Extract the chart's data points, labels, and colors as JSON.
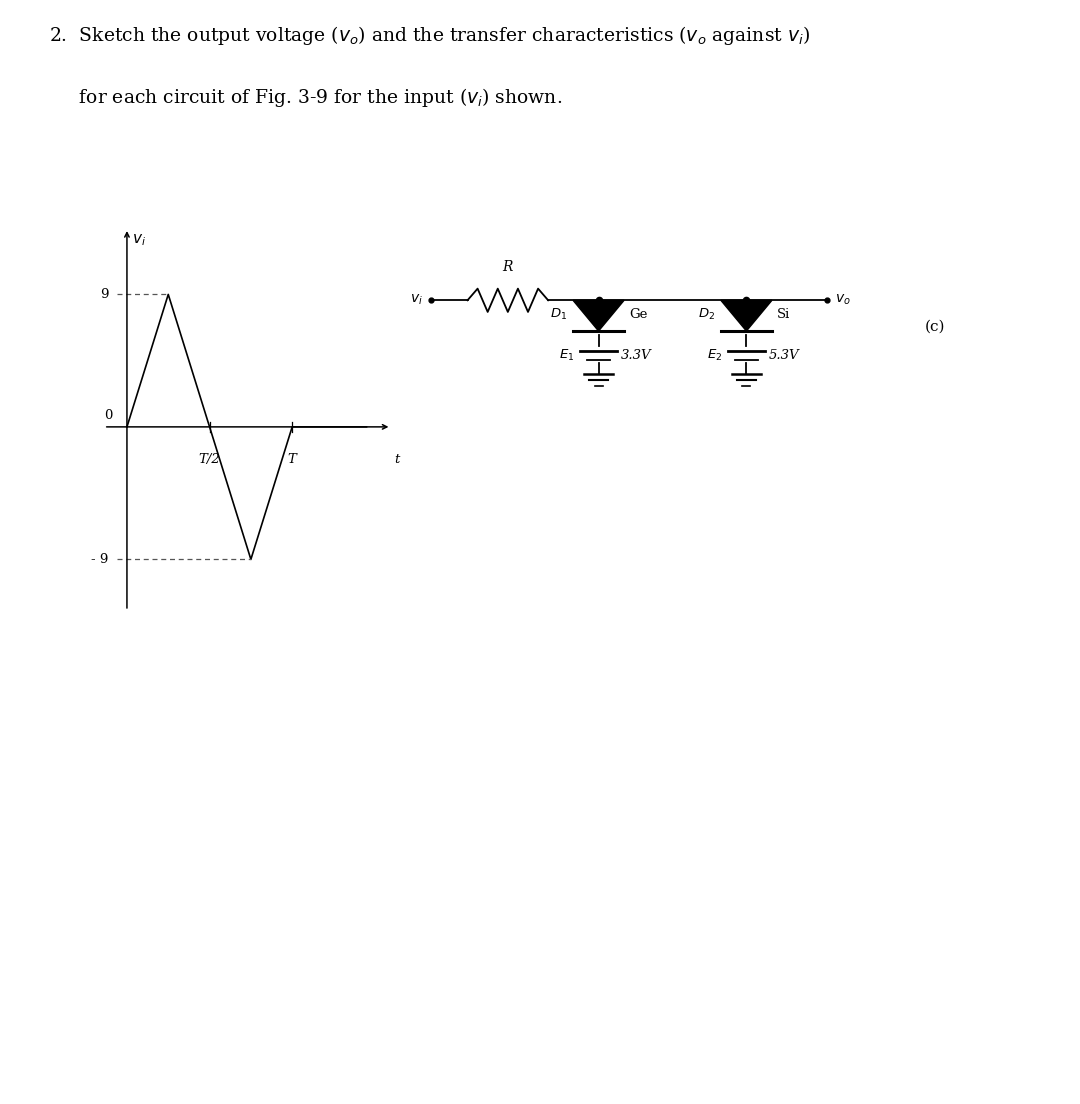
{
  "bg_color": "#ffffff",
  "text_color": "#000000",
  "waveform": {
    "amplitude": 9,
    "label_9": "9",
    "label_neg9": "- 9",
    "label_0": "0",
    "label_T2": "T/2",
    "label_T": "T",
    "label_t": "t",
    "label_vi": "$v_i$"
  },
  "circuit": {
    "label_vi": "$v_i$",
    "label_vo": "$v_o$",
    "label_R": "R",
    "label_D1": "$D_1$",
    "label_Ge": "Ge",
    "label_D2": "$D_2$",
    "label_Si": "Si",
    "label_E1": "$E_1$",
    "label_E1_val": "3.3V",
    "label_E2": "$E_2$",
    "label_E2_val": "5.3V",
    "label_c": "(c)"
  },
  "font_size_title": 13.5,
  "font_size_labels": 10,
  "font_size_small": 9.5
}
